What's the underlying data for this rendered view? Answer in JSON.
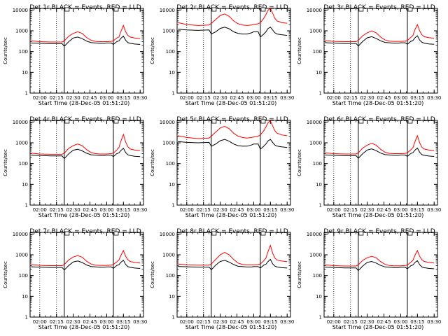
{
  "colors": {
    "events": "#000000",
    "lld": "#ff0000",
    "axes": "#000000",
    "background": "#ffffff"
  },
  "common": {
    "ylabel": "Counts/sec",
    "xlabel": "Start Time (28-Dec-05 01:51:20)",
    "x_tick_labels": [
      "02:00",
      "02:15",
      "02:30",
      "02:45",
      "03:00",
      "03:15",
      "03:30"
    ],
    "y_tick_labels": [
      "1",
      "10",
      "100",
      "1000",
      "10000"
    ]
  },
  "chart_data": [
    {
      "type": "line",
      "title": "Det 1r BLACK = Events, RED = LLD",
      "xlim": [
        "01:51:20",
        "03:33:00"
      ],
      "ylim": [
        1,
        12000
      ],
      "yscale": "log",
      "x": [
        "01:52",
        "02:00",
        "02:10",
        "02:20",
        "02:22",
        "02:26",
        "02:30",
        "02:34",
        "02:38",
        "02:42",
        "02:46",
        "02:50",
        "02:54",
        "02:58",
        "03:00",
        "03:04",
        "03:06",
        "03:09",
        "03:11",
        "03:13",
        "03:15",
        "03:17",
        "03:19",
        "03:21",
        "03:25",
        "03:30"
      ],
      "series": [
        {
          "values": [
            330,
            300,
            290,
            290,
            330,
            550,
            750,
            900,
            750,
            480,
            350,
            310,
            300,
            300,
            300,
            310,
            330,
            450,
            500,
            1000,
            1800,
            900,
            600,
            500,
            450,
            420
          ]
        },
        {
          "values": [
            260,
            250,
            240,
            240,
            180,
            300,
            450,
            500,
            420,
            320,
            270,
            260,
            250,
            250,
            260,
            260,
            220,
            300,
            330,
            450,
            550,
            350,
            270,
            250,
            230,
            220
          ]
        }
      ]
    },
    {
      "type": "line",
      "title": "Det 2r BLACK = Events, RED = LLD",
      "xlim": [
        "01:51:20",
        "03:33:00"
      ],
      "ylim": [
        1,
        12000
      ],
      "yscale": "log",
      "x": [
        "01:52",
        "02:00",
        "02:10",
        "02:20",
        "02:22",
        "02:26",
        "02:30",
        "02:34",
        "02:38",
        "02:42",
        "02:46",
        "02:50",
        "02:54",
        "02:58",
        "03:00",
        "03:04",
        "03:06",
        "03:09",
        "03:11",
        "03:13",
        "03:15",
        "03:17",
        "03:19",
        "03:21",
        "03:25",
        "03:30"
      ],
      "series": [
        {
          "values": [
            2500,
            2000,
            1800,
            1900,
            2300,
            3500,
            5500,
            6500,
            5000,
            3000,
            2200,
            1900,
            1800,
            1900,
            2000,
            2200,
            2500,
            4000,
            6000,
            10000,
            12000,
            7000,
            4000,
            3000,
            2500,
            2300
          ]
        },
        {
          "values": [
            1200,
            1100,
            1050,
            1100,
            700,
            900,
            1300,
            1500,
            1250,
            900,
            750,
            700,
            700,
            800,
            900,
            900,
            500,
            700,
            900,
            1300,
            1500,
            1100,
            800,
            700,
            650,
            600
          ]
        }
      ]
    },
    {
      "type": "line",
      "title": "Det 3r BLACK = Events, RED = LLD",
      "xlim": [
        "01:51:20",
        "03:33:00"
      ],
      "ylim": [
        1,
        12000
      ],
      "yscale": "log",
      "x": [
        "01:52",
        "02:00",
        "02:10",
        "02:20",
        "02:22",
        "02:26",
        "02:30",
        "02:34",
        "02:38",
        "02:42",
        "02:46",
        "02:50",
        "02:54",
        "02:58",
        "03:00",
        "03:04",
        "03:06",
        "03:09",
        "03:11",
        "03:13",
        "03:15",
        "03:17",
        "03:19",
        "03:21",
        "03:25",
        "03:30"
      ],
      "series": [
        {
          "values": [
            340,
            310,
            300,
            300,
            350,
            580,
            800,
            1000,
            800,
            500,
            360,
            320,
            310,
            310,
            310,
            320,
            340,
            480,
            600,
            1200,
            2000,
            1000,
            650,
            520,
            470,
            440
          ]
        },
        {
          "values": [
            270,
            255,
            245,
            245,
            185,
            310,
            460,
            520,
            430,
            330,
            275,
            265,
            255,
            255,
            265,
            265,
            225,
            310,
            340,
            470,
            580,
            360,
            280,
            255,
            235,
            225
          ]
        }
      ]
    },
    {
      "type": "line",
      "title": "Det 4r BLACK = Events, RED = LLD",
      "xlim": [
        "01:51:20",
        "03:33:00"
      ],
      "ylim": [
        1,
        12000
      ],
      "yscale": "log",
      "x": [
        "01:52",
        "02:00",
        "02:10",
        "02:20",
        "02:22",
        "02:26",
        "02:30",
        "02:34",
        "02:38",
        "02:42",
        "02:46",
        "02:50",
        "02:54",
        "02:58",
        "03:00",
        "03:04",
        "03:06",
        "03:09",
        "03:11",
        "03:13",
        "03:15",
        "03:17",
        "03:19",
        "03:21",
        "03:25",
        "03:30"
      ],
      "series": [
        {
          "values": [
            320,
            290,
            280,
            280,
            320,
            540,
            730,
            880,
            730,
            470,
            340,
            300,
            290,
            290,
            290,
            300,
            320,
            450,
            600,
            1300,
            2500,
            1100,
            650,
            500,
            450,
            420
          ]
        },
        {
          "values": [
            255,
            245,
            235,
            235,
            175,
            295,
            440,
            490,
            410,
            315,
            265,
            255,
            245,
            245,
            255,
            255,
            215,
            300,
            330,
            440,
            540,
            340,
            265,
            245,
            225,
            215
          ]
        }
      ]
    },
    {
      "type": "line",
      "title": "Det 5r BLACK = Events, RED = LLD",
      "xlim": [
        "01:51:20",
        "03:33:00"
      ],
      "ylim": [
        1,
        12000
      ],
      "yscale": "log",
      "x": [
        "01:52",
        "02:00",
        "02:10",
        "02:20",
        "02:22",
        "02:26",
        "02:30",
        "02:34",
        "02:38",
        "02:42",
        "02:46",
        "02:50",
        "02:54",
        "02:58",
        "03:00",
        "03:04",
        "03:06",
        "03:09",
        "03:11",
        "03:13",
        "03:15",
        "03:17",
        "03:19",
        "03:21",
        "03:25",
        "03:30"
      ],
      "series": [
        {
          "values": [
            2200,
            1800,
            1600,
            1700,
            2100,
            3300,
            5200,
            6200,
            4800,
            2900,
            2100,
            1800,
            1700,
            1800,
            1900,
            2100,
            2400,
            3800,
            5800,
            9500,
            11500,
            6500,
            3800,
            2900,
            2400,
            2200
          ]
        },
        {
          "values": [
            1150,
            1050,
            1000,
            1050,
            680,
            880,
            1250,
            1450,
            1200,
            880,
            730,
            690,
            690,
            780,
            880,
            880,
            490,
            690,
            880,
            1250,
            1450,
            1050,
            780,
            690,
            640,
            590
          ]
        }
      ]
    },
    {
      "type": "line",
      "title": "Det 6r BLACK = Events, RED = LLD",
      "xlim": [
        "01:51:20",
        "03:33:00"
      ],
      "ylim": [
        1,
        12000
      ],
      "yscale": "log",
      "x": [
        "01:52",
        "02:00",
        "02:10",
        "02:20",
        "02:22",
        "02:26",
        "02:30",
        "02:34",
        "02:38",
        "02:42",
        "02:46",
        "02:50",
        "02:54",
        "02:58",
        "03:00",
        "03:04",
        "03:06",
        "03:09",
        "03:11",
        "03:13",
        "03:15",
        "03:17",
        "03:19",
        "03:21",
        "03:25",
        "03:30"
      ],
      "series": [
        {
          "values": [
            330,
            300,
            290,
            290,
            330,
            560,
            770,
            950,
            770,
            490,
            350,
            310,
            300,
            300,
            300,
            310,
            330,
            460,
            580,
            1200,
            2200,
            1000,
            620,
            500,
            450,
            420
          ]
        },
        {
          "values": [
            260,
            250,
            240,
            240,
            180,
            300,
            450,
            510,
            420,
            320,
            270,
            260,
            250,
            250,
            260,
            260,
            220,
            305,
            335,
            455,
            560,
            355,
            270,
            250,
            230,
            220
          ]
        }
      ]
    },
    {
      "type": "line",
      "title": "Det 7r BLACK = Events, RED = LLD",
      "xlim": [
        "01:51:20",
        "03:33:00"
      ],
      "ylim": [
        1,
        12000
      ],
      "yscale": "log",
      "x": [
        "01:52",
        "02:00",
        "02:10",
        "02:20",
        "02:22",
        "02:26",
        "02:30",
        "02:34",
        "02:38",
        "02:42",
        "02:46",
        "02:50",
        "02:54",
        "02:58",
        "03:00",
        "03:04",
        "03:06",
        "03:09",
        "03:11",
        "03:13",
        "03:15",
        "03:17",
        "03:19",
        "03:21",
        "03:25",
        "03:30"
      ],
      "series": [
        {
          "values": [
            340,
            310,
            300,
            300,
            340,
            570,
            780,
            920,
            770,
            490,
            360,
            320,
            310,
            310,
            310,
            320,
            340,
            460,
            560,
            1000,
            1600,
            850,
            580,
            480,
            430,
            400
          ]
        },
        {
          "values": [
            265,
            255,
            245,
            245,
            185,
            305,
            455,
            505,
            425,
            325,
            272,
            262,
            252,
            252,
            262,
            262,
            222,
            305,
            335,
            450,
            540,
            345,
            270,
            250,
            230,
            220
          ]
        }
      ]
    },
    {
      "type": "line",
      "title": "Det 8r BLACK = Events, RED = LLD",
      "xlim": [
        "01:51:20",
        "03:33:00"
      ],
      "ylim": [
        1,
        12000
      ],
      "yscale": "log",
      "x": [
        "01:52",
        "02:00",
        "02:10",
        "02:20",
        "02:22",
        "02:26",
        "02:30",
        "02:34",
        "02:38",
        "02:42",
        "02:46",
        "02:50",
        "02:54",
        "02:58",
        "03:00",
        "03:04",
        "03:06",
        "03:09",
        "03:11",
        "03:13",
        "03:15",
        "03:17",
        "03:19",
        "03:21",
        "03:25",
        "03:30"
      ],
      "series": [
        {
          "values": [
            360,
            330,
            320,
            320,
            360,
            600,
            1000,
            1300,
            1000,
            600,
            400,
            340,
            330,
            330,
            330,
            340,
            360,
            520,
            700,
            1500,
            2800,
            1200,
            700,
            550,
            500,
            470
          ]
        },
        {
          "values": [
            275,
            265,
            255,
            255,
            190,
            320,
            480,
            540,
            445,
            340,
            280,
            270,
            260,
            260,
            270,
            270,
            230,
            320,
            350,
            480,
            600,
            370,
            285,
            260,
            240,
            230
          ]
        }
      ]
    },
    {
      "type": "line",
      "title": "Det 9r BLACK = Events, RED = LLD",
      "xlim": [
        "01:51:20",
        "03:33:00"
      ],
      "ylim": [
        1,
        12000
      ],
      "yscale": "log",
      "x": [
        "01:52",
        "02:00",
        "02:10",
        "02:20",
        "02:22",
        "02:26",
        "02:30",
        "02:34",
        "02:38",
        "02:42",
        "02:46",
        "02:50",
        "02:54",
        "02:58",
        "03:00",
        "03:04",
        "03:06",
        "03:09",
        "03:11",
        "03:13",
        "03:15",
        "03:17",
        "03:19",
        "03:21",
        "03:25",
        "03:30"
      ],
      "series": [
        {
          "values": [
            330,
            300,
            290,
            290,
            330,
            540,
            720,
            850,
            720,
            470,
            345,
            305,
            295,
            295,
            295,
            305,
            325,
            440,
            540,
            1000,
            1600,
            850,
            580,
            480,
            430,
            400
          ]
        },
        {
          "values": [
            255,
            245,
            235,
            235,
            175,
            290,
            430,
            480,
            400,
            310,
            262,
            252,
            242,
            242,
            252,
            252,
            212,
            295,
            325,
            435,
            520,
            335,
            260,
            240,
            222,
            212
          ]
        }
      ]
    }
  ]
}
